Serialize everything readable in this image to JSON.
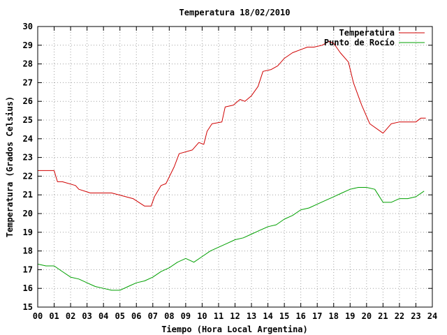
{
  "chart_data": {
    "type": "line",
    "title": "Temperatura 18/02/2010",
    "xlabel": "Tiempo (Hora Local Argentina)",
    "ylabel": "Temperatura (Grados Celsius)",
    "xlim": [
      0,
      24
    ],
    "ylim": [
      15,
      30
    ],
    "x_ticks": [
      "00",
      "01",
      "02",
      "03",
      "04",
      "05",
      "06",
      "07",
      "08",
      "09",
      "10",
      "11",
      "12",
      "13",
      "14",
      "15",
      "16",
      "17",
      "18",
      "19",
      "20",
      "21",
      "22",
      "23",
      "24"
    ],
    "y_ticks": [
      "15",
      "16",
      "17",
      "18",
      "19",
      "20",
      "21",
      "22",
      "23",
      "24",
      "25",
      "26",
      "27",
      "28",
      "29",
      "30"
    ],
    "grid": true,
    "legend_position": "top-right",
    "series": [
      {
        "name": "Temperatura",
        "color": "#d00000",
        "x": [
          0,
          0.25,
          1.0,
          1.2,
          1.5,
          2.3,
          2.5,
          3.2,
          4.5,
          5.8,
          6.5,
          6.9,
          7.1,
          7.5,
          7.8,
          8.3,
          8.6,
          9.4,
          9.8,
          10.1,
          10.3,
          10.6,
          11.2,
          11.4,
          11.9,
          12.3,
          12.6,
          13.0,
          13.4,
          13.7,
          14.2,
          14.6,
          15.0,
          15.5,
          16.1,
          16.4,
          16.8,
          17.3,
          17.7,
          18.0,
          18.4,
          18.9,
          19.2,
          19.7,
          20.2,
          21.0,
          21.5,
          22.0,
          23.0,
          23.3,
          23.6
        ],
        "y": [
          22.3,
          22.3,
          22.3,
          21.7,
          21.7,
          21.5,
          21.3,
          21.1,
          21.1,
          20.8,
          20.4,
          20.4,
          20.9,
          21.5,
          21.6,
          22.5,
          23.2,
          23.4,
          23.8,
          23.7,
          24.4,
          24.8,
          24.9,
          25.7,
          25.8,
          26.1,
          26.0,
          26.3,
          26.8,
          27.6,
          27.7,
          27.9,
          28.3,
          28.6,
          28.8,
          28.9,
          28.9,
          29.0,
          29.2,
          29.1,
          28.6,
          28.1,
          27.0,
          25.8,
          24.8,
          24.3,
          24.8,
          24.9,
          24.9,
          25.1,
          25.1
        ]
      },
      {
        "name": "Punto de Rocío",
        "color": "#00a000",
        "x": [
          0,
          0.5,
          1.0,
          1.5,
          2.0,
          2.5,
          3.0,
          3.5,
          4.0,
          4.5,
          5.0,
          5.5,
          6.0,
          6.5,
          7.0,
          7.5,
          8.0,
          8.5,
          9.0,
          9.5,
          10.0,
          10.5,
          11.0,
          11.5,
          12.0,
          12.5,
          13.0,
          13.5,
          14.0,
          14.5,
          15.0,
          15.5,
          16.0,
          16.5,
          17.0,
          17.5,
          18.0,
          18.5,
          19.0,
          19.5,
          20.0,
          20.5,
          21.0,
          21.5,
          22.0,
          22.5,
          23.0,
          23.5
        ],
        "y": [
          17.3,
          17.2,
          17.2,
          16.9,
          16.6,
          16.5,
          16.3,
          16.1,
          16.0,
          15.9,
          15.9,
          16.1,
          16.3,
          16.4,
          16.6,
          16.9,
          17.1,
          17.4,
          17.6,
          17.4,
          17.7,
          18.0,
          18.2,
          18.4,
          18.6,
          18.7,
          18.9,
          19.1,
          19.3,
          19.4,
          19.7,
          19.9,
          20.2,
          20.3,
          20.5,
          20.7,
          20.9,
          21.1,
          21.3,
          21.4,
          21.4,
          21.3,
          20.6,
          20.6,
          20.8,
          20.8,
          20.9,
          21.2
        ]
      }
    ]
  }
}
